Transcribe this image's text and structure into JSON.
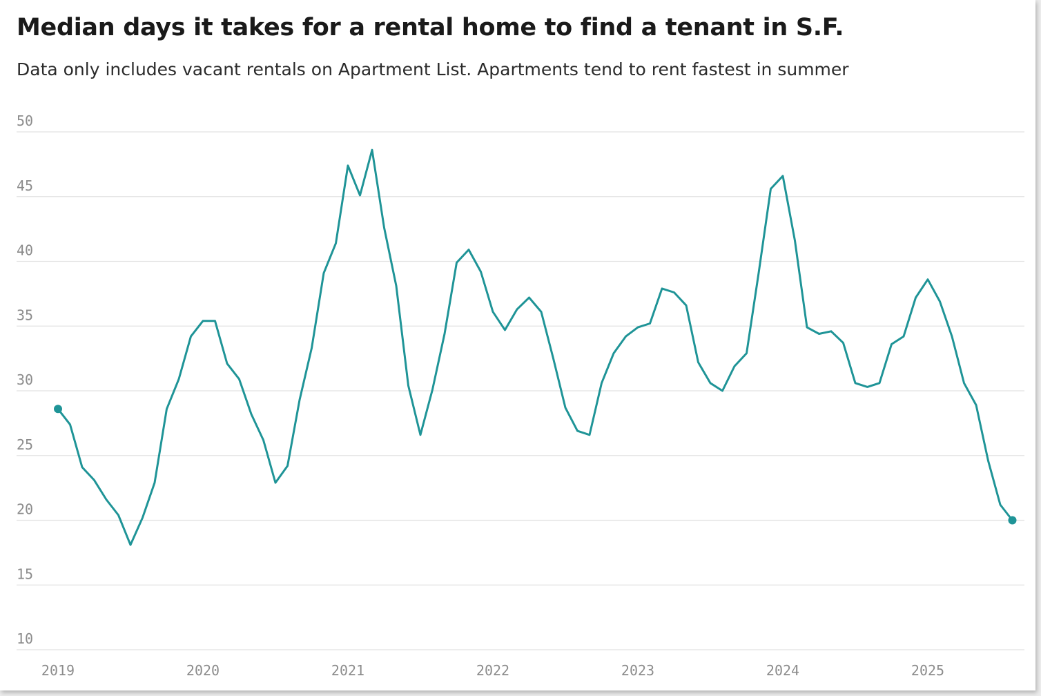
{
  "title": "Median days it takes for a rental home to find a tenant in S.F.",
  "subtitle": "Data only includes vacant rentals on Apartment List. Apartments tend to rent fastest in summer",
  "colors": {
    "line": "#1f9497",
    "grid": "#e2e2e2",
    "tick": "#8c8c8c",
    "title": "#1a1a1a"
  },
  "chart_data": {
    "type": "line",
    "title": "Median days it takes for a rental home to find a tenant in S.F.",
    "subtitle": "Data only includes vacant rentals on Apartment List. Apartments tend to rent fastest in summer",
    "xlabel": "",
    "ylabel": "",
    "ylim": [
      10,
      50
    ],
    "yticks": [
      50,
      45,
      40,
      35,
      30,
      25,
      20,
      15,
      10
    ],
    "xticks": [
      "2019",
      "2020",
      "2021",
      "2022",
      "2023",
      "2024",
      "2025"
    ],
    "grid": true,
    "legend": "none",
    "endpoint_markers": true,
    "series": [
      {
        "x": [
          "2019-01",
          "2019-02",
          "2019-03",
          "2019-04",
          "2019-05",
          "2019-06",
          "2019-07",
          "2019-08",
          "2019-09",
          "2019-10",
          "2019-11",
          "2019-12",
          "2020-01",
          "2020-02",
          "2020-03",
          "2020-04",
          "2020-05",
          "2020-06",
          "2020-07",
          "2020-08",
          "2020-09",
          "2020-10",
          "2020-11",
          "2020-12",
          "2021-01",
          "2021-02",
          "2021-03",
          "2021-04",
          "2021-05",
          "2021-06",
          "2021-07",
          "2021-08",
          "2021-09",
          "2021-10",
          "2021-11",
          "2021-12",
          "2022-01",
          "2022-02",
          "2022-03",
          "2022-04",
          "2022-05",
          "2022-06",
          "2022-07",
          "2022-08",
          "2022-09",
          "2022-10",
          "2022-11",
          "2022-12",
          "2023-01",
          "2023-02",
          "2023-03",
          "2023-04",
          "2023-05",
          "2023-06",
          "2023-07",
          "2023-08",
          "2023-09",
          "2023-10",
          "2023-11",
          "2023-12",
          "2024-01",
          "2024-02",
          "2024-03",
          "2024-04",
          "2024-05",
          "2024-06",
          "2024-07",
          "2024-08",
          "2024-09",
          "2024-10",
          "2024-11",
          "2024-12",
          "2025-01",
          "2025-02",
          "2025-03",
          "2025-04",
          "2025-05",
          "2025-06",
          "2025-07",
          "2025-08"
        ],
        "values": [
          28.6,
          27.4,
          24.1,
          23.1,
          21.6,
          20.4,
          18.1,
          20.2,
          22.9,
          28.6,
          30.9,
          34.2,
          35.4,
          35.4,
          32.1,
          30.9,
          28.2,
          26.2,
          22.9,
          24.2,
          29.3,
          33.3,
          39.1,
          41.4,
          47.4,
          45.1,
          48.6,
          42.6,
          38.1,
          30.4,
          26.6,
          30.1,
          34.4,
          39.9,
          40.9,
          39.2,
          36.1,
          34.7,
          36.3,
          37.2,
          36.1,
          32.5,
          28.7,
          26.9,
          26.6,
          30.6,
          32.9,
          34.2,
          34.9,
          35.2,
          37.9,
          37.6,
          36.6,
          32.2,
          30.6,
          30.0,
          31.9,
          32.9,
          39.1,
          45.6,
          46.6,
          41.6,
          34.9,
          34.4,
          34.6,
          33.7,
          30.6,
          30.3,
          30.6,
          33.6,
          34.2,
          37.2,
          38.6,
          36.9,
          34.2,
          30.6,
          28.9,
          24.6,
          21.2,
          20.0
        ]
      }
    ]
  }
}
